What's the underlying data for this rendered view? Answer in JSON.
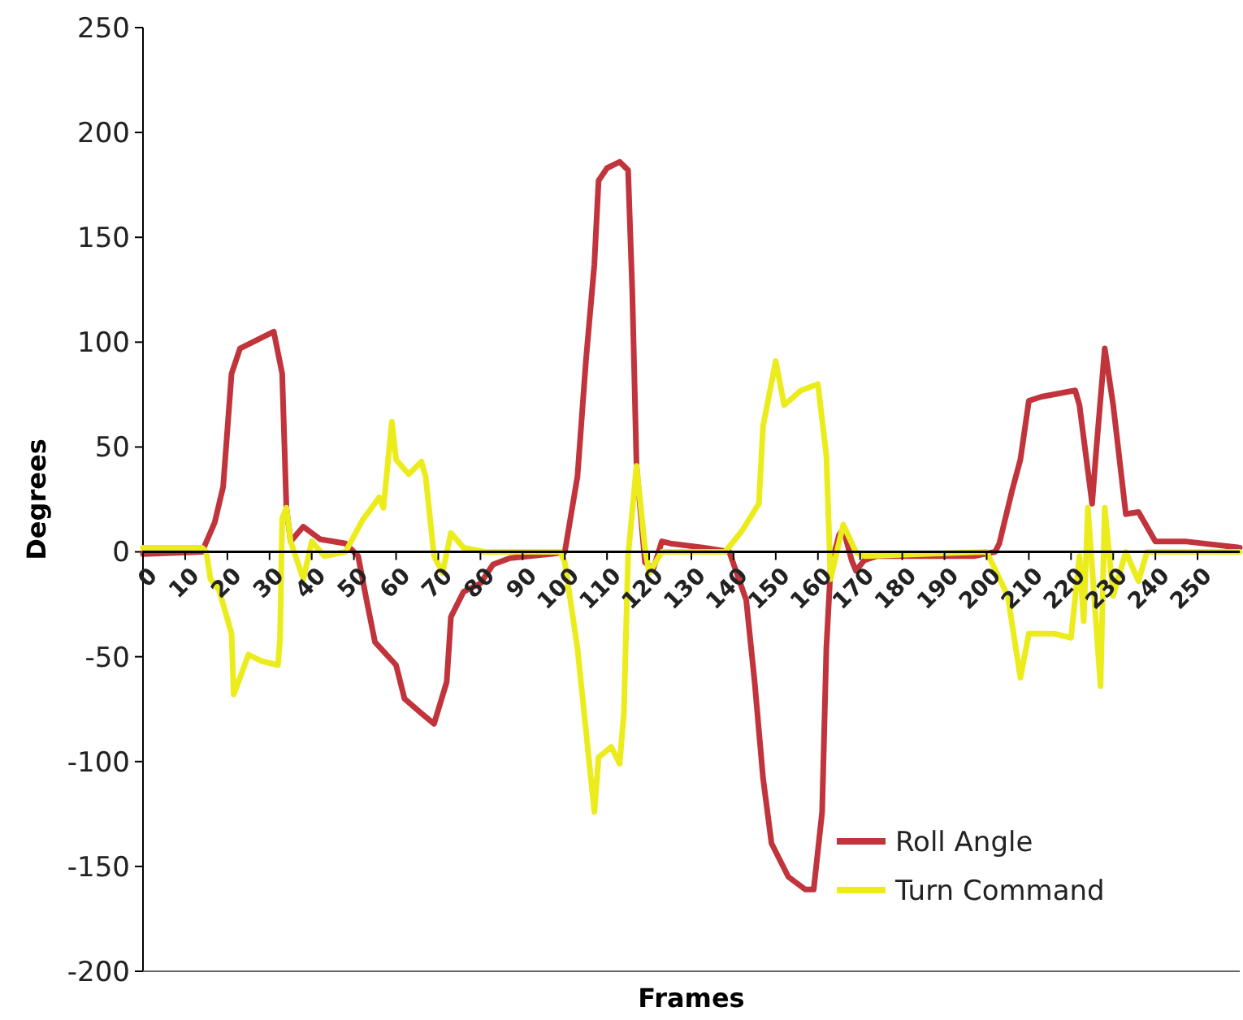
{
  "chart_data": {
    "type": "line",
    "xlabel": "Frames",
    "ylabel": "Degrees",
    "xlim": [
      0,
      260
    ],
    "xticks": [
      0,
      10,
      20,
      30,
      40,
      50,
      60,
      70,
      80,
      90,
      100,
      110,
      120,
      130,
      140,
      150,
      160,
      170,
      180,
      190,
      200,
      210,
      220,
      230,
      240,
      250
    ],
    "ylim": [
      -200,
      250
    ],
    "yticks": [
      -200,
      -150,
      -100,
      -50,
      0,
      50,
      100,
      150,
      200,
      250
    ],
    "grid": false,
    "legend": "bottom right",
    "marker": "none",
    "line_style": "solid",
    "series": [
      {
        "name": "Roll Angle",
        "color": "#c1343c",
        "x": [
          0,
          14,
          17,
          19,
          21,
          23,
          28,
          31,
          33,
          34,
          35,
          38,
          42,
          48,
          51,
          53,
          55,
          60,
          62,
          66,
          69,
          72,
          73,
          76,
          80,
          83,
          87,
          97,
          100,
          103,
          105,
          107,
          108,
          110,
          113,
          115,
          116,
          117,
          119,
          121,
          123,
          125,
          133,
          139,
          143,
          145,
          147,
          149,
          153,
          157,
          159,
          161,
          162,
          163,
          165,
          166,
          168,
          169,
          171,
          174,
          197,
          202,
          203,
          206,
          208,
          210,
          213,
          221,
          222,
          225,
          226,
          228,
          230,
          233,
          236,
          240,
          247,
          260
        ],
        "values": [
          -1,
          0,
          14,
          31,
          85,
          97,
          102,
          105,
          85,
          21,
          5,
          12,
          6,
          4,
          -2,
          -23,
          -43,
          -54,
          -70,
          -77,
          -82,
          -62,
          -31,
          -19,
          -15,
          -6,
          -3,
          -1,
          0,
          36,
          91,
          137,
          177,
          183,
          186,
          182,
          124,
          41,
          -5,
          -8,
          5,
          4,
          2,
          0,
          -23,
          -62,
          -108,
          -139,
          -155,
          -161,
          -161,
          -124,
          -46,
          -8,
          8,
          11,
          -4,
          -9,
          -4,
          -2,
          -2,
          0,
          4,
          29,
          44,
          72,
          74,
          77,
          70,
          23,
          49,
          97,
          70,
          18,
          19,
          5,
          5,
          2
        ]
      },
      {
        "name": "Turn Command",
        "color": "#ecec1c",
        "x": [
          0,
          14,
          15,
          16,
          18,
          21,
          21.5,
          23,
          25,
          28,
          32,
          32.5,
          33,
          34,
          35,
          38,
          40,
          43,
          48,
          52,
          56,
          57,
          59,
          60,
          63,
          66,
          67,
          69,
          71,
          73,
          76,
          81,
          99,
          100,
          103,
          107,
          108,
          111,
          113,
          114,
          115,
          117,
          119,
          120,
          123,
          138,
          142,
          146,
          147,
          150,
          152,
          156,
          160,
          162,
          163,
          166,
          169,
          171,
          200,
          205,
          208,
          210,
          216,
          220,
          222,
          223,
          224,
          227,
          228,
          230,
          233,
          236,
          238,
          260
        ],
        "values": [
          2,
          2,
          0,
          -13,
          -18,
          -39,
          -68,
          -60,
          -49,
          -52,
          -54,
          -41,
          16,
          21,
          5,
          -13,
          5,
          -2,
          0,
          15,
          26,
          21,
          62,
          44,
          37,
          43,
          36,
          -2,
          -10,
          9,
          2,
          0,
          0,
          -5,
          -46,
          -124,
          -98,
          -93,
          -101,
          -77,
          -2,
          41,
          2,
          -10,
          0,
          0,
          10,
          23,
          60,
          91,
          70,
          77,
          80,
          46,
          -13,
          13,
          0,
          -2,
          0,
          -21,
          -60,
          -39,
          -39,
          -41,
          -2,
          -33,
          21,
          -64,
          21,
          -21,
          0,
          -14,
          0,
          0
        ]
      }
    ]
  }
}
